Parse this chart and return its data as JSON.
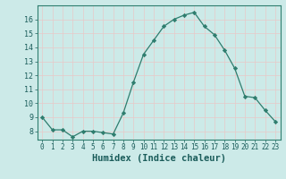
{
  "x": [
    0,
    1,
    2,
    3,
    4,
    5,
    6,
    7,
    8,
    9,
    10,
    11,
    12,
    13,
    14,
    15,
    16,
    17,
    18,
    19,
    20,
    21,
    22,
    23
  ],
  "y": [
    9.0,
    8.1,
    8.1,
    7.6,
    8.0,
    8.0,
    7.9,
    7.8,
    9.3,
    11.5,
    13.5,
    14.5,
    15.5,
    16.0,
    16.3,
    16.5,
    15.5,
    14.9,
    13.8,
    12.5,
    10.5,
    10.4,
    9.5,
    8.7
  ],
  "line_color": "#2e7d6e",
  "marker": "D",
  "marker_size": 2.2,
  "bg_color": "#cceae8",
  "grid_color": "#e8c8c8",
  "xlabel": "Humidex (Indice chaleur)",
  "xlabel_fontsize": 7.5,
  "ylabel_ticks": [
    8,
    9,
    10,
    11,
    12,
    13,
    14,
    15,
    16
  ],
  "xlim": [
    -0.5,
    23.5
  ],
  "ylim": [
    7.4,
    17.0
  ],
  "xtick_fontsize": 5.5,
  "ytick_fontsize": 6.0
}
